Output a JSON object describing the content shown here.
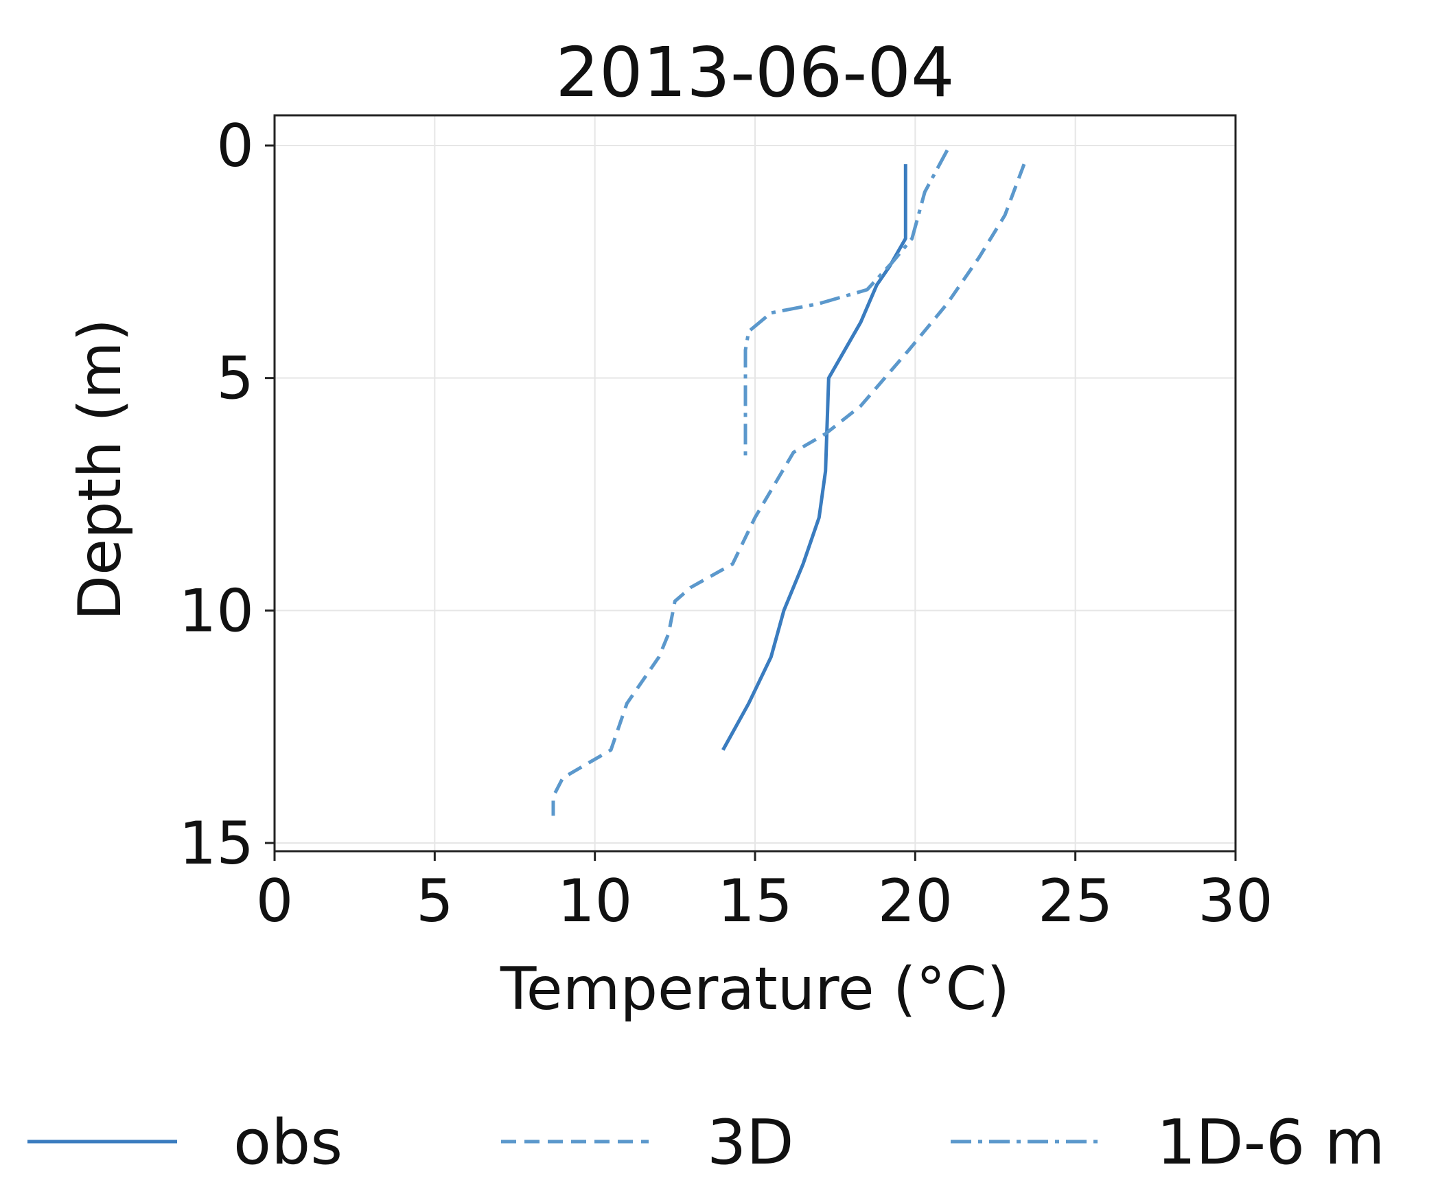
{
  "chart_data": {
    "type": "line",
    "title": "2013-06-04",
    "xlabel": "Temperature (°C)",
    "ylabel": "Depth (m)",
    "xlim": [
      0,
      30
    ],
    "ylim": [
      15,
      0
    ],
    "y_inverted": true,
    "xticks": [
      "0",
      "5",
      "10",
      "15",
      "20",
      "25",
      "30"
    ],
    "yticks": [
      "0",
      "5",
      "10",
      "15"
    ],
    "grid": true,
    "legend_placement": "bottom",
    "series": [
      {
        "name": "obs",
        "line_style": "solid",
        "color": "#3a7cbf",
        "points": [
          [
            19.7,
            0.4
          ],
          [
            19.7,
            2.0
          ],
          [
            19.2,
            2.6
          ],
          [
            18.8,
            3.0
          ],
          [
            18.3,
            3.8
          ],
          [
            17.3,
            5.0
          ],
          [
            17.2,
            7.0
          ],
          [
            17.0,
            8.0
          ],
          [
            16.5,
            9.0
          ],
          [
            15.9,
            10.0
          ],
          [
            15.5,
            11.0
          ],
          [
            14.8,
            12.0
          ],
          [
            14.0,
            13.0
          ]
        ]
      },
      {
        "name": "3D",
        "line_style": "dashed",
        "color": "#5b98cc",
        "points": [
          [
            23.4,
            0.4
          ],
          [
            22.8,
            1.5
          ],
          [
            22.0,
            2.4
          ],
          [
            21.0,
            3.4
          ],
          [
            19.8,
            4.4
          ],
          [
            18.3,
            5.6
          ],
          [
            17.2,
            6.2
          ],
          [
            16.2,
            6.6
          ],
          [
            15.0,
            8.0
          ],
          [
            14.3,
            9.0
          ],
          [
            13.0,
            9.5
          ],
          [
            12.5,
            9.8
          ],
          [
            12.3,
            10.5
          ],
          [
            12.0,
            11.0
          ],
          [
            11.0,
            12.0
          ],
          [
            10.5,
            13.0
          ],
          [
            9.0,
            13.6
          ],
          [
            8.7,
            14.0
          ],
          [
            8.7,
            14.5
          ]
        ]
      },
      {
        "name": "1D-6 m",
        "line_style": "dashdot",
        "color": "#5b98cc",
        "points": [
          [
            21.0,
            0.1
          ],
          [
            20.3,
            1.0
          ],
          [
            19.9,
            2.0
          ],
          [
            19.3,
            2.5
          ],
          [
            18.5,
            3.1
          ],
          [
            17.0,
            3.4
          ],
          [
            15.5,
            3.6
          ],
          [
            14.8,
            4.0
          ],
          [
            14.7,
            4.4
          ],
          [
            14.7,
            5.0
          ],
          [
            14.7,
            6.0
          ],
          [
            14.7,
            6.7
          ]
        ]
      }
    ]
  }
}
